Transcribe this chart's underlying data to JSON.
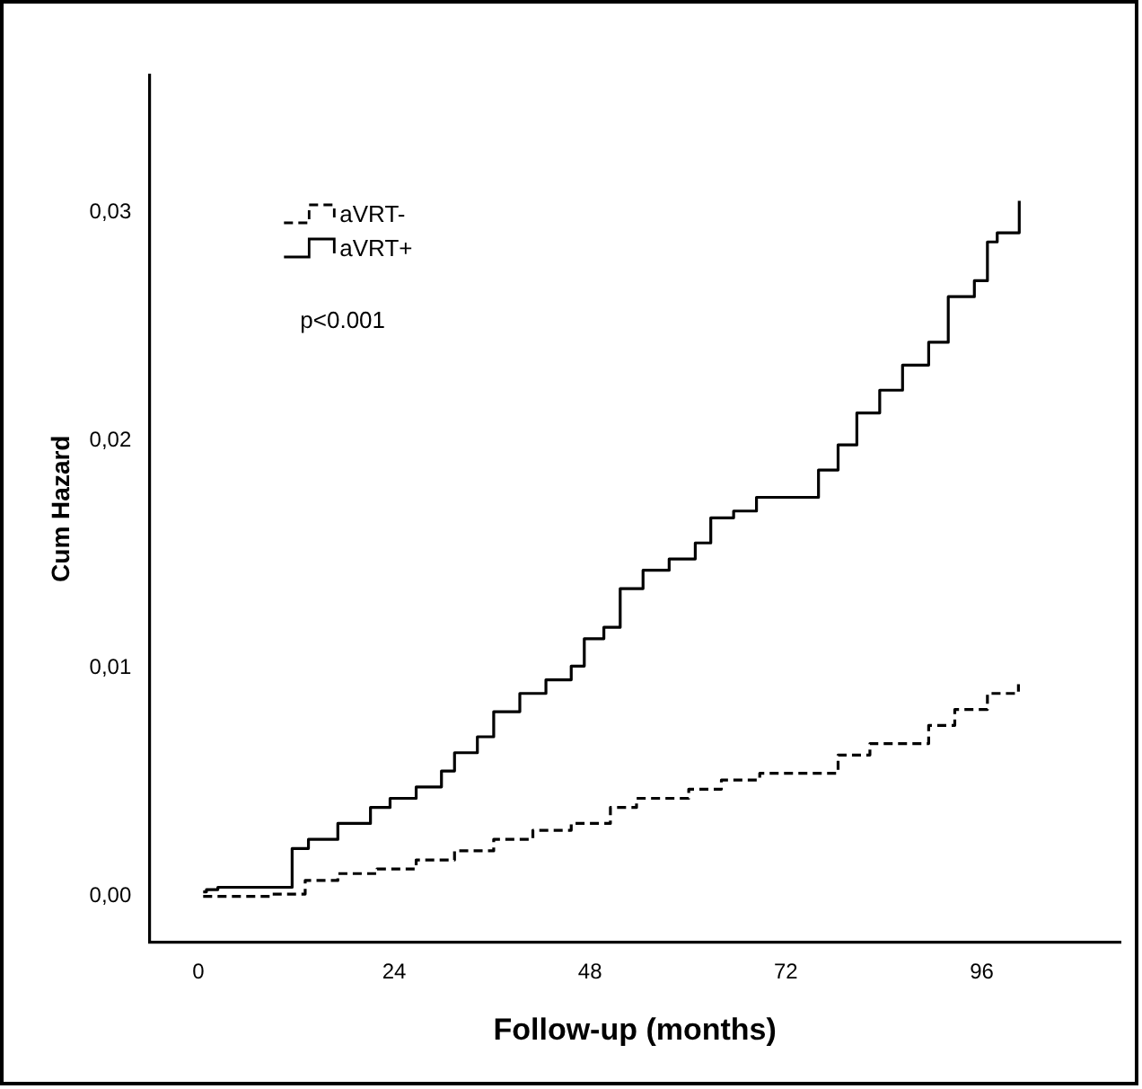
{
  "chart_data": {
    "type": "step",
    "xlabel": "Follow-up (months)",
    "ylabel": "Cum Hazard",
    "xlim": [
      -6,
      113
    ],
    "xticks": [
      0,
      24,
      48,
      72,
      96
    ],
    "ylim": [
      -0.002,
      0.036
    ],
    "yticks": [
      {
        "value": 0,
        "label": "0,00"
      },
      {
        "value": 0.01,
        "label": "0,01"
      },
      {
        "value": 0.02,
        "label": "0,02"
      },
      {
        "value": 0.03,
        "label": "0,03"
      }
    ],
    "grid": false,
    "legend": "top left",
    "marker": "none",
    "annotations": [
      "p<0.001"
    ],
    "series": [
      {
        "name": "aVRT-",
        "color": "#000000",
        "line_style": "dashed",
        "x": [
          0.6,
          9.0,
          13.1,
          17.1,
          21.9,
          26.7,
          31.4,
          36.2,
          41.0,
          45.7,
          50.5,
          53.7,
          60.1,
          64.1,
          68.8,
          73.6,
          78.4,
          82.3,
          89.5,
          92.7,
          96.7,
          100.5
        ],
        "values": [
          0,
          0.0001,
          0.0007,
          0.001,
          0.0012,
          0.0016,
          0.002,
          0.0025,
          0.0029,
          0.0032,
          0.0039,
          0.0043,
          0.0047,
          0.0051,
          0.0054,
          0.0054,
          0.0062,
          0.0067,
          0.0075,
          0.0082,
          0.0089,
          0.0093
        ]
      },
      {
        "name": "aVRT+",
        "color": "#000000",
        "line_style": "solid",
        "x": [
          0.6,
          1.0,
          2.4,
          9.0,
          11.5,
          13.5,
          17.1,
          21.1,
          23.5,
          26.7,
          29.8,
          31.4,
          34.2,
          36.2,
          39.4,
          42.6,
          45.7,
          47.3,
          49.7,
          51.7,
          54.5,
          57.7,
          60.9,
          62.8,
          65.6,
          68.4,
          73.6,
          76.0,
          78.4,
          80.7,
          83.5,
          86.3,
          89.5,
          91.9,
          95.1,
          96.7,
          97.9,
          100.5,
          100.6
        ],
        "values": [
          0.0002,
          0.0003,
          0.0004,
          0.0004,
          0.0021,
          0.0025,
          0.0032,
          0.0039,
          0.0043,
          0.0048,
          0.0055,
          0.0063,
          0.007,
          0.0081,
          0.0089,
          0.0095,
          0.0101,
          0.0113,
          0.0118,
          0.0135,
          0.0143,
          0.0148,
          0.0155,
          0.0166,
          0.0169,
          0.0175,
          0.0175,
          0.0187,
          0.0198,
          0.0212,
          0.0222,
          0.0233,
          0.0243,
          0.0263,
          0.027,
          0.0287,
          0.0291,
          0.0291,
          0.0305
        ]
      }
    ]
  }
}
